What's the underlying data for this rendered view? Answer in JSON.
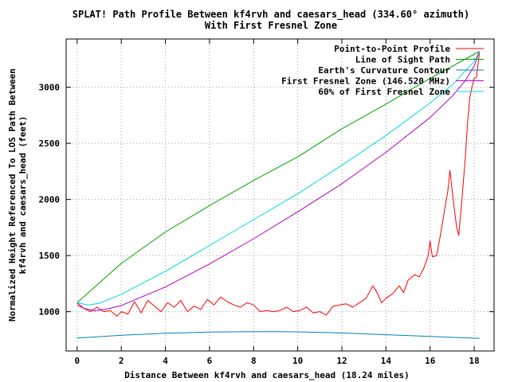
{
  "chart_data": {
    "type": "line",
    "title": "SPLAT! Path Profile Between kf4rvh and caesars_head (334.60° azimuth)",
    "subtitle": "With First Fresnel Zone",
    "xlabel": "Distance Between kf4rvh and caesars_head (18.24 miles)",
    "ylabel_line1": "Normalized Height Referenced To LOS Path Between",
    "ylabel_line2": "kf4rvh and caesars_head (feet)",
    "xlim": [
      -0.5,
      18.9
    ],
    "ylim": [
      650,
      3430
    ],
    "x_ticks": [
      0,
      2,
      4,
      6,
      8,
      10,
      12,
      14,
      16,
      18
    ],
    "y_ticks": [
      1000,
      1500,
      2000,
      2500,
      3000
    ],
    "grid": true,
    "legend_position": "top-right",
    "series": [
      {
        "name": "Point-to-Point Profile",
        "color": "#ff0000",
        "points": [
          [
            0,
            1060
          ],
          [
            0.3,
            1030
          ],
          [
            0.6,
            1000
          ],
          [
            0.9,
            1040
          ],
          [
            1.2,
            1000
          ],
          [
            1.5,
            1010
          ],
          [
            1.8,
            960
          ],
          [
            2.0,
            1000
          ],
          [
            2.3,
            980
          ],
          [
            2.6,
            1090
          ],
          [
            2.9,
            990
          ],
          [
            3.2,
            1100
          ],
          [
            3.5,
            1050
          ],
          [
            3.8,
            1000
          ],
          [
            4.1,
            1080
          ],
          [
            4.4,
            1040
          ],
          [
            4.7,
            1100
          ],
          [
            5.0,
            1000
          ],
          [
            5.3,
            1050
          ],
          [
            5.6,
            1020
          ],
          [
            5.9,
            1110
          ],
          [
            6.2,
            1060
          ],
          [
            6.5,
            1130
          ],
          [
            6.8,
            1090
          ],
          [
            7.1,
            1060
          ],
          [
            7.4,
            1040
          ],
          [
            7.7,
            1080
          ],
          [
            8.0,
            1060
          ],
          [
            8.3,
            1000
          ],
          [
            8.6,
            1010
          ],
          [
            8.9,
            1000
          ],
          [
            9.2,
            1010
          ],
          [
            9.5,
            1040
          ],
          [
            9.8,
            1000
          ],
          [
            10.1,
            1010
          ],
          [
            10.4,
            1040
          ],
          [
            10.7,
            990
          ],
          [
            11.0,
            1000
          ],
          [
            11.3,
            970
          ],
          [
            11.6,
            1050
          ],
          [
            11.9,
            1060
          ],
          [
            12.2,
            1070
          ],
          [
            12.5,
            1040
          ],
          [
            12.8,
            1080
          ],
          [
            13.1,
            1120
          ],
          [
            13.4,
            1230
          ],
          [
            13.6,
            1170
          ],
          [
            13.8,
            1080
          ],
          [
            14.0,
            1120
          ],
          [
            14.3,
            1160
          ],
          [
            14.6,
            1230
          ],
          [
            14.8,
            1170
          ],
          [
            15.0,
            1280
          ],
          [
            15.3,
            1330
          ],
          [
            15.5,
            1310
          ],
          [
            15.7,
            1380
          ],
          [
            15.9,
            1490
          ],
          [
            16.0,
            1630
          ],
          [
            16.1,
            1490
          ],
          [
            16.3,
            1500
          ],
          [
            16.5,
            1720
          ],
          [
            16.7,
            1960
          ],
          [
            16.8,
            2070
          ],
          [
            16.9,
            2260
          ],
          [
            17.0,
            2080
          ],
          [
            17.1,
            1910
          ],
          [
            17.2,
            1760
          ],
          [
            17.3,
            1680
          ],
          [
            17.4,
            1900
          ],
          [
            17.6,
            2380
          ],
          [
            17.7,
            2690
          ],
          [
            17.8,
            2910
          ],
          [
            17.9,
            3000
          ],
          [
            18.0,
            3080
          ],
          [
            18.1,
            3090
          ],
          [
            18.24,
            3310
          ]
        ]
      },
      {
        "name": "Line of Sight Path",
        "color": "#00a000",
        "points": [
          [
            0,
            1080
          ],
          [
            2,
            1430
          ],
          [
            4,
            1710
          ],
          [
            6,
            1945
          ],
          [
            8,
            2170
          ],
          [
            10,
            2380
          ],
          [
            12,
            2630
          ],
          [
            14,
            2850
          ],
          [
            16,
            3080
          ],
          [
            18.24,
            3320
          ]
        ]
      },
      {
        "name": "Earth's Curvature Contour",
        "color": "#0080c0",
        "points": [
          [
            0,
            765
          ],
          [
            2,
            790
          ],
          [
            4,
            808
          ],
          [
            6,
            818
          ],
          [
            8,
            822
          ],
          [
            9,
            822
          ],
          [
            10,
            820
          ],
          [
            12,
            810
          ],
          [
            14,
            795
          ],
          [
            16,
            780
          ],
          [
            18.24,
            762
          ]
        ]
      },
      {
        "name": "First Fresnel Zone (146.520 MHz)",
        "color": "#b000c0",
        "points": [
          [
            0,
            1080
          ],
          [
            0.3,
            1030
          ],
          [
            0.8,
            1008
          ],
          [
            1.5,
            1030
          ],
          [
            2,
            1055
          ],
          [
            4,
            1220
          ],
          [
            6,
            1425
          ],
          [
            8,
            1650
          ],
          [
            10,
            1890
          ],
          [
            12,
            2140
          ],
          [
            14,
            2420
          ],
          [
            16,
            2730
          ],
          [
            17,
            2920
          ],
          [
            17.6,
            3060
          ],
          [
            18,
            3190
          ],
          [
            18.24,
            3320
          ]
        ]
      },
      {
        "name": "60% of First Fresnel Zone",
        "color": "#00d8e0",
        "points": [
          [
            0,
            1080
          ],
          [
            0.5,
            1060
          ],
          [
            1,
            1075
          ],
          [
            2,
            1155
          ],
          [
            4,
            1360
          ],
          [
            6,
            1590
          ],
          [
            8,
            1820
          ],
          [
            10,
            2050
          ],
          [
            12,
            2305
          ],
          [
            14,
            2570
          ],
          [
            16,
            2860
          ],
          [
            17,
            3020
          ],
          [
            18,
            3230
          ],
          [
            18.24,
            3320
          ]
        ]
      }
    ]
  }
}
